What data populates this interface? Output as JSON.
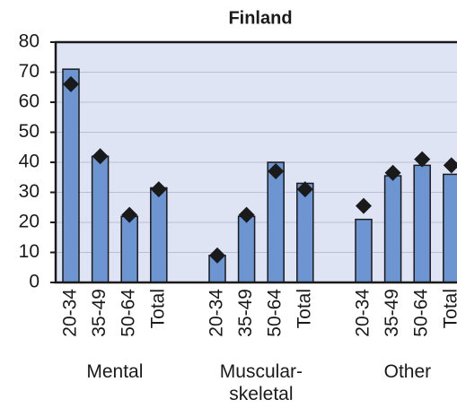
{
  "chart_data": {
    "type": "bar",
    "title": "Finland",
    "groups": [
      {
        "name": "Mental",
        "categories": [
          "20-34",
          "35-49",
          "50-64",
          "Total"
        ]
      },
      {
        "name": "Muscular-\nskeletal",
        "categories": [
          "20-34",
          "35-49",
          "50-64",
          "Total"
        ]
      },
      {
        "name": "Other",
        "categories": [
          "20-34",
          "35-49",
          "50-64",
          "Total"
        ]
      }
    ],
    "series": [
      {
        "color": "#6d95d1",
        "values": [
          71,
          42,
          22,
          31.5,
          9,
          22,
          40,
          33,
          21,
          35.5,
          39,
          36
        ]
      },
      {
        "color": "#1a1a1a",
        "marker": "diamond",
        "values": [
          66,
          42,
          22.5,
          31,
          9,
          22.5,
          37,
          31,
          25.5,
          36.5,
          41,
          39
        ]
      }
    ],
    "ylim": [
      0,
      80
    ],
    "yticks": [
      0,
      10,
      20,
      30,
      40,
      50,
      60,
      70,
      80
    ],
    "grid": true
  }
}
